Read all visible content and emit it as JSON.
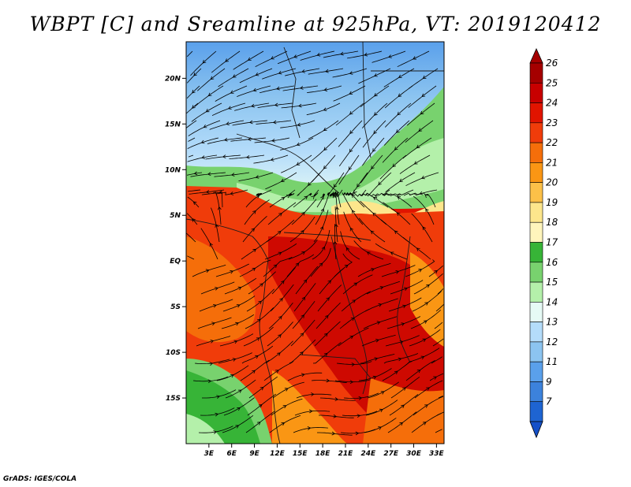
{
  "title": "WBPT [C] and Sreamline at 925hPa, VT: 2019120412",
  "credit": "GrADS: IGES/COLA",
  "map": {
    "lon_range": [
      0,
      34
    ],
    "lat_range": [
      -20,
      24
    ],
    "lat_ticks": [
      {
        "value": 20,
        "label": "20N"
      },
      {
        "value": 15,
        "label": "15N"
      },
      {
        "value": 10,
        "label": "10N"
      },
      {
        "value": 5,
        "label": "5N"
      },
      {
        "value": 0,
        "label": "EQ"
      },
      {
        "value": -5,
        "label": "5S"
      },
      {
        "value": -10,
        "label": "10S"
      },
      {
        "value": -15,
        "label": "15S"
      }
    ],
    "lon_ticks": [
      {
        "value": 3,
        "label": "3E"
      },
      {
        "value": 6,
        "label": "6E"
      },
      {
        "value": 9,
        "label": "9E"
      },
      {
        "value": 12,
        "label": "12E"
      },
      {
        "value": 15,
        "label": "15E"
      },
      {
        "value": 18,
        "label": "18E"
      },
      {
        "value": 21,
        "label": "21E"
      },
      {
        "value": 24,
        "label": "24E"
      },
      {
        "value": 27,
        "label": "27E"
      },
      {
        "value": 30,
        "label": "30E"
      },
      {
        "value": 33,
        "label": "33E"
      }
    ]
  },
  "colorbar": {
    "levels": [
      {
        "label": "26",
        "color": "#a50000"
      },
      {
        "label": "25",
        "color": "#c80000"
      },
      {
        "label": "24",
        "color": "#e11400"
      },
      {
        "label": "23",
        "color": "#f03c0a"
      },
      {
        "label": "22",
        "color": "#f56e0a"
      },
      {
        "label": "21",
        "color": "#fa9614"
      },
      {
        "label": "20",
        "color": "#fcc048"
      },
      {
        "label": "19",
        "color": "#fde68c"
      },
      {
        "label": "18",
        "color": "#fff5bc"
      },
      {
        "label": "17",
        "color": "#37b437"
      },
      {
        "label": "16",
        "color": "#78d26e"
      },
      {
        "label": "15",
        "color": "#b4f0aa"
      },
      {
        "label": "14",
        "color": "#e6faf5"
      },
      {
        "label": "13",
        "color": "#b4dcfa"
      },
      {
        "label": "12",
        "color": "#8cc4f0"
      },
      {
        "label": "11",
        "color": "#5aa0eb"
      },
      {
        "label": "9",
        "color": "#3c82dc"
      },
      {
        "label": "7",
        "color": "#1e64d2"
      }
    ],
    "bottom_color": "#1450c8"
  }
}
